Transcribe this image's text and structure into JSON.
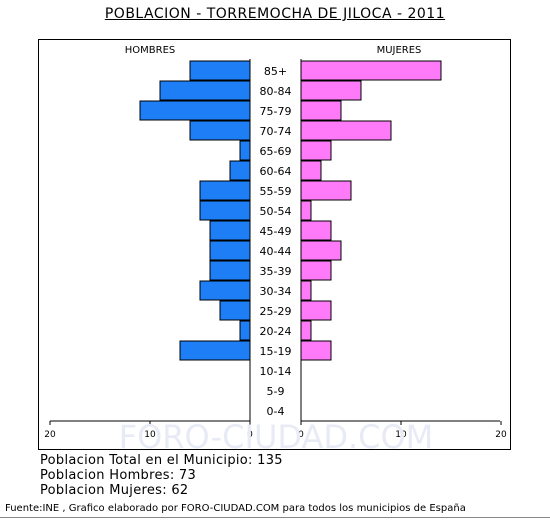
{
  "title": "POBLACION - TORREMOCHA DE JILOCA - 2011",
  "watermark": "FORO-CIUDAD.COM",
  "stats": {
    "total": "Poblacion Total en el Municipio: 135",
    "men": "Poblacion Hombres: 73",
    "women": "Poblacion Mujeres: 62"
  },
  "footer": "Fuente:INE , Grafico elaborado por FORO-CIUDAD.COM para todos los municipios de España",
  "chart_data": {
    "type": "bar",
    "orientation": "horizontal-pyramid",
    "categories": [
      "85+",
      "80-84",
      "75-79",
      "70-74",
      "65-69",
      "60-64",
      "55-59",
      "50-54",
      "45-49",
      "40-44",
      "35-39",
      "30-34",
      "25-29",
      "20-24",
      "15-19",
      "10-14",
      "5-9",
      "0-4"
    ],
    "series": [
      {
        "name": "HOMBRES",
        "color": "#1e7ef6",
        "values": [
          6,
          9,
          11,
          6,
          1,
          2,
          5,
          5,
          4,
          4,
          4,
          5,
          3,
          1,
          7,
          0,
          0,
          0
        ]
      },
      {
        "name": "MUJERES",
        "color": "#ff7af8",
        "values": [
          14,
          6,
          4,
          9,
          3,
          2,
          5,
          1,
          3,
          4,
          3,
          1,
          3,
          1,
          3,
          0,
          0,
          0
        ]
      }
    ],
    "xlim": [
      0,
      20
    ],
    "xticks": [
      "20",
      "10",
      "0",
      "0",
      "10",
      "20"
    ],
    "grid": false
  }
}
